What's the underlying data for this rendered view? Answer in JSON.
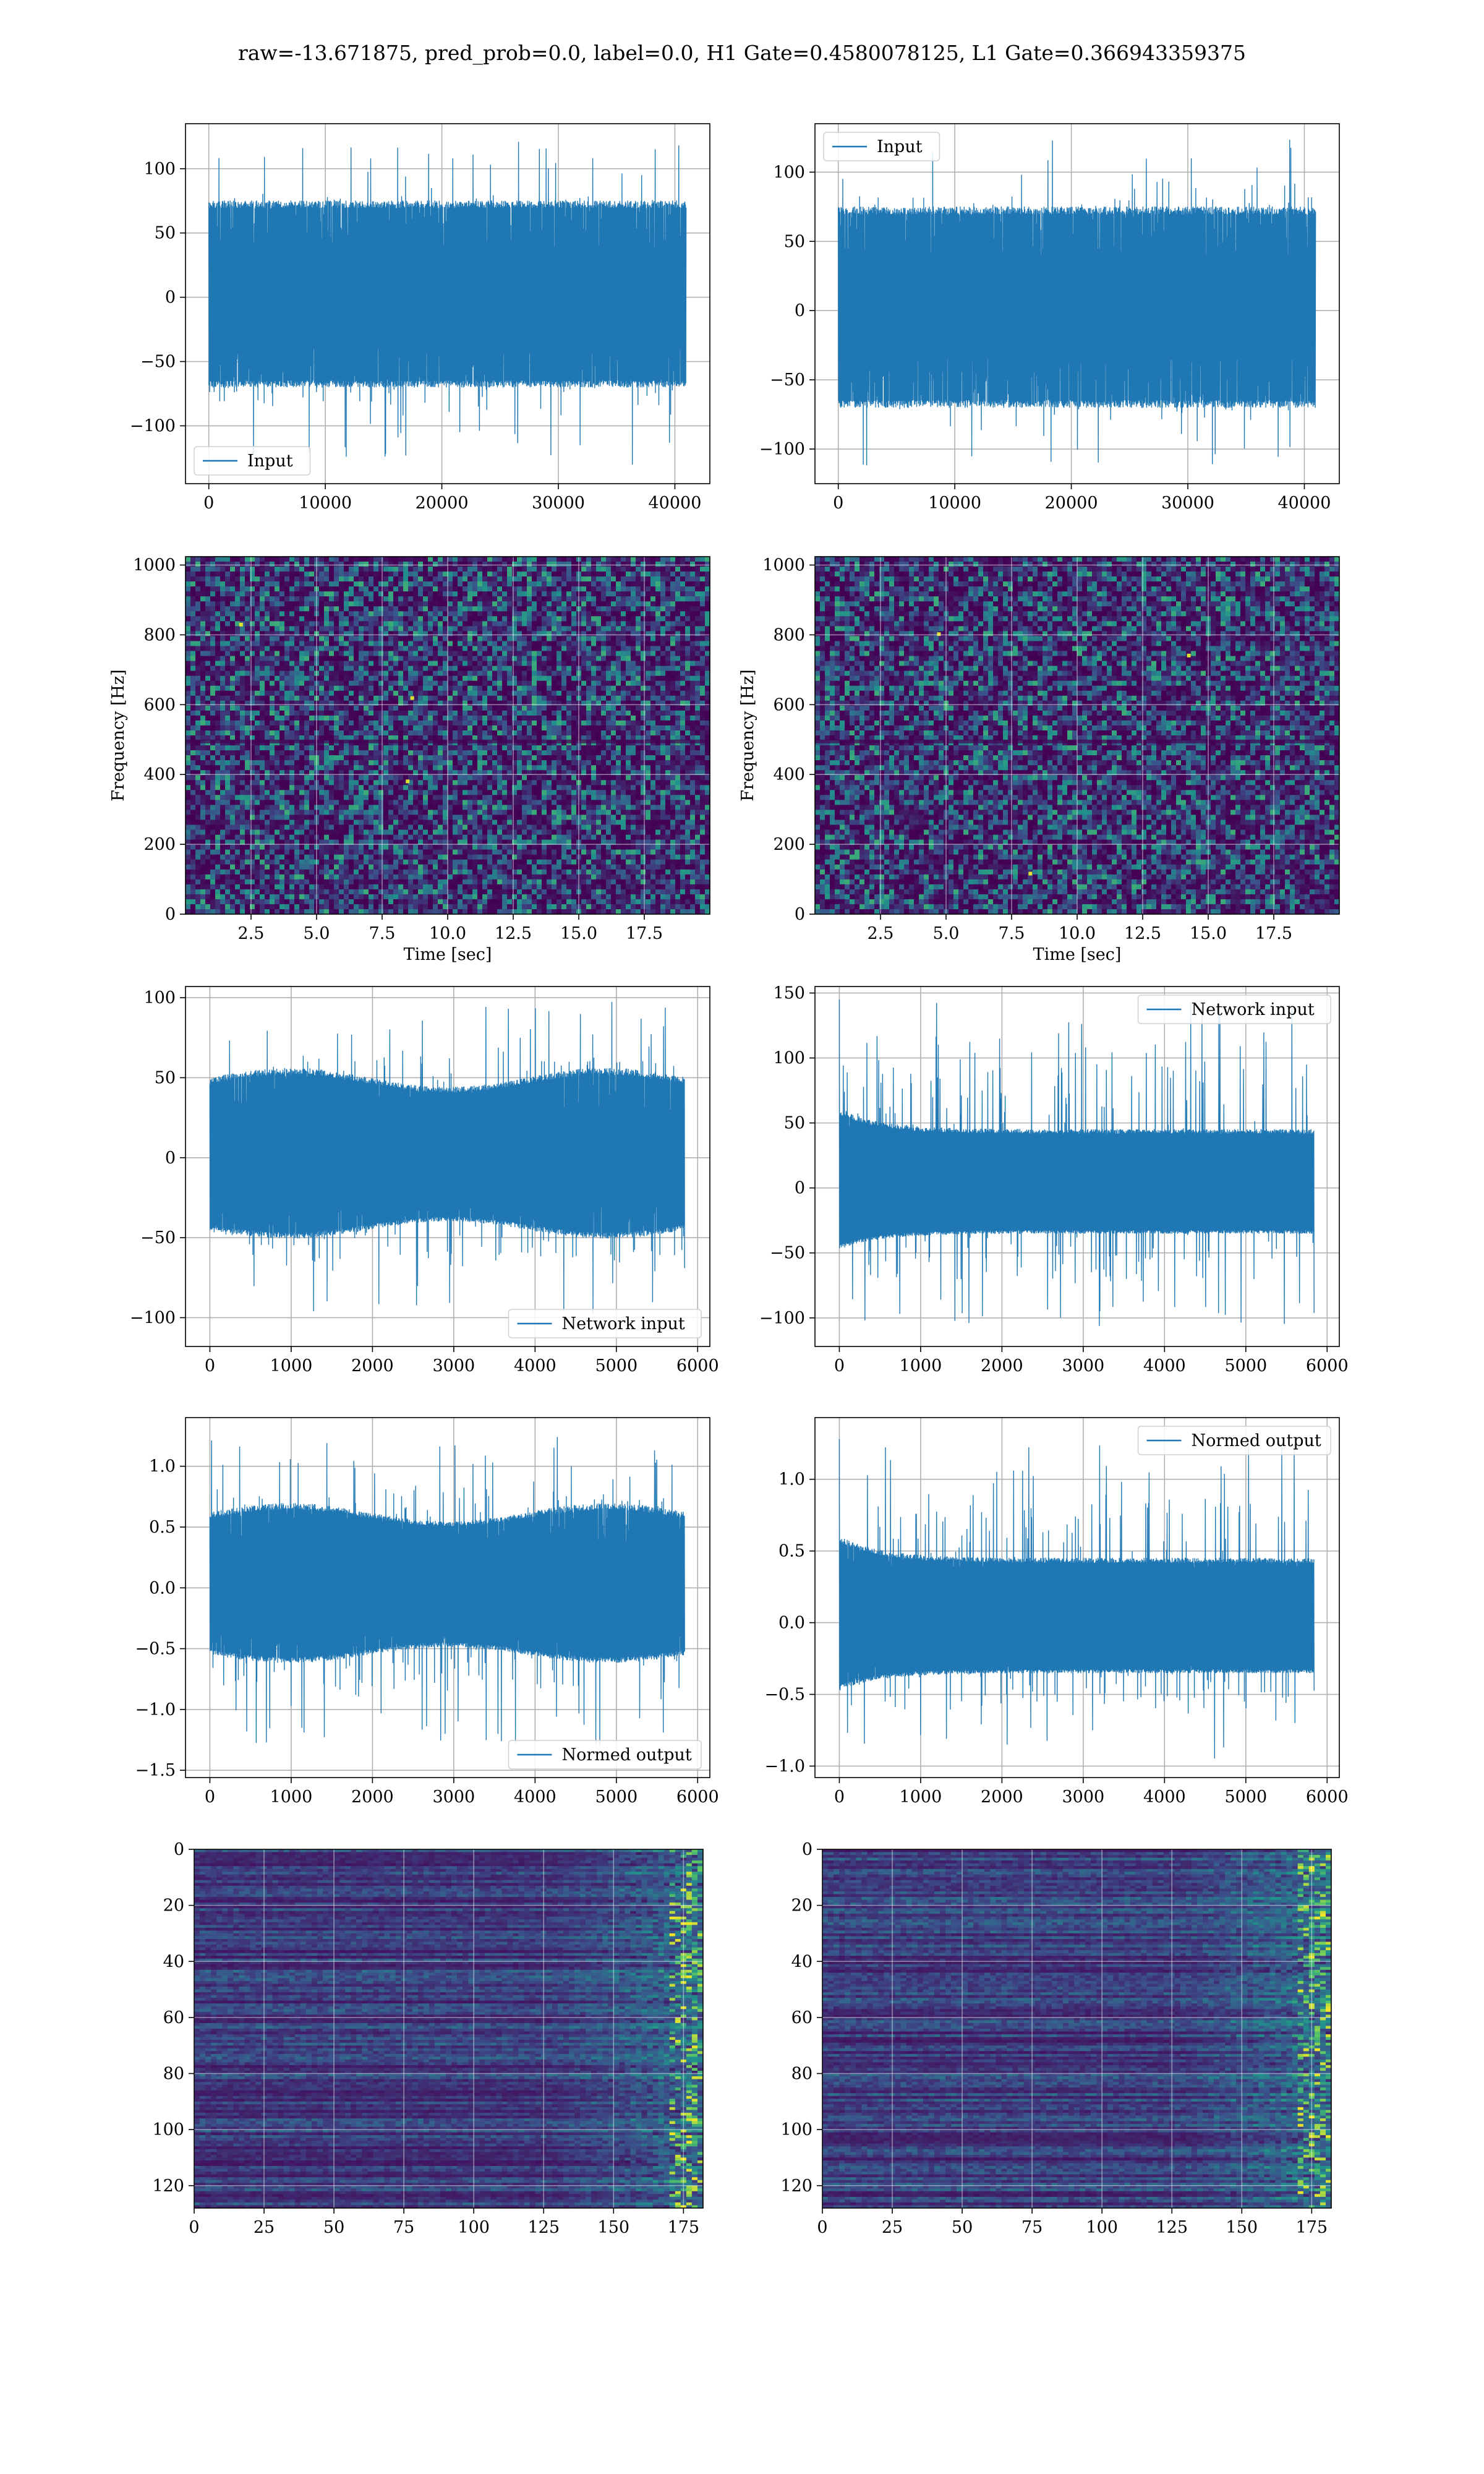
{
  "figure": {
    "suptitle": "raw=-13.671875, pred_prob=0.0, label=0.0, H1 Gate=0.4580078125, L1 Gate=0.366943359375"
  },
  "colors": {
    "line": "#1f77b4",
    "grid": "#b0b0b0",
    "viridis_dark": "#440154",
    "viridis_mid": "#3b528b",
    "viridis_teal": "#21918c",
    "viridis_green": "#5ec962",
    "viridis_yellow": "#fde725"
  },
  "chart_data": [
    {
      "id": "h1-input",
      "type": "line",
      "legend": [
        "Input"
      ],
      "legend_loc": "lower-left",
      "xlim": [
        -2000,
        43000
      ],
      "ylim": [
        -145,
        135
      ],
      "xticks": [
        0,
        10000,
        20000,
        30000,
        40000
      ],
      "yticks": [
        -100,
        -50,
        0,
        50,
        100
      ],
      "series": [
        {
          "name": "Input",
          "n_samples": 40960,
          "x_range": [
            0,
            40960
          ],
          "envelope_typical": [
            -70,
            75
          ],
          "peak_max": 125,
          "peak_min": -130
        }
      ],
      "grid": true
    },
    {
      "id": "l1-input",
      "type": "line",
      "legend": [
        "Input"
      ],
      "legend_loc": "upper-left",
      "xlim": [
        -2000,
        43000
      ],
      "ylim": [
        -125,
        135
      ],
      "xticks": [
        0,
        10000,
        20000,
        30000,
        40000
      ],
      "yticks": [
        -100,
        -50,
        0,
        50,
        100
      ],
      "series": [
        {
          "name": "Input",
          "n_samples": 40960,
          "x_range": [
            0,
            40960
          ],
          "envelope_typical": [
            -70,
            75
          ],
          "peak_max": 130,
          "peak_min": -112
        }
      ],
      "grid": true
    },
    {
      "id": "h1-spectrogram",
      "type": "heatmap",
      "xlabel": "Time [sec]",
      "ylabel": "Frequency [Hz]",
      "xlim": [
        0,
        20
      ],
      "ylim": [
        0,
        1024
      ],
      "xticks": [
        2.5,
        5.0,
        7.5,
        10.0,
        12.5,
        15.0,
        17.5
      ],
      "yticks": [
        0,
        200,
        400,
        600,
        800,
        1000
      ],
      "colormap": "viridis",
      "grid": true
    },
    {
      "id": "l1-spectrogram",
      "type": "heatmap",
      "xlabel": "Time [sec]",
      "ylabel": "Frequency [Hz]",
      "xlim": [
        0,
        20
      ],
      "ylim": [
        0,
        1024
      ],
      "xticks": [
        2.5,
        5.0,
        7.5,
        10.0,
        12.5,
        15.0,
        17.5
      ],
      "yticks": [
        0,
        200,
        400,
        600,
        800,
        1000
      ],
      "colormap": "viridis",
      "grid": true
    },
    {
      "id": "h1-network-input",
      "type": "line",
      "legend": [
        "Network input"
      ],
      "legend_loc": "lower-right",
      "xlim": [
        -300,
        6150
      ],
      "ylim": [
        -118,
        107
      ],
      "xticks": [
        0,
        1000,
        2000,
        3000,
        4000,
        5000,
        6000
      ],
      "yticks": [
        -100,
        -50,
        0,
        50,
        100
      ],
      "series": [
        {
          "name": "Network input",
          "n_samples": 5840,
          "x_range": [
            0,
            5840
          ],
          "envelope_typical": [
            -45,
            50
          ],
          "peak_max": 98,
          "peak_min": -100
        }
      ],
      "grid": true
    },
    {
      "id": "l1-network-input",
      "type": "line",
      "legend": [
        "Network input"
      ],
      "legend_loc": "upper-right",
      "xlim": [
        -300,
        6150
      ],
      "ylim": [
        -122,
        155
      ],
      "xticks": [
        0,
        1000,
        2000,
        3000,
        4000,
        5000,
        6000
      ],
      "yticks": [
        -100,
        -50,
        0,
        50,
        100,
        150
      ],
      "series": [
        {
          "name": "Network input",
          "n_samples": 5840,
          "x_range": [
            0,
            5840
          ],
          "envelope_typical": [
            -35,
            45
          ],
          "peak_max": 145,
          "peak_min": -108
        }
      ],
      "grid": true
    },
    {
      "id": "h1-normed-output",
      "type": "line",
      "legend": [
        "Normed output"
      ],
      "legend_loc": "lower-right",
      "xlim": [
        -300,
        6150
      ],
      "ylim": [
        -1.56,
        1.4
      ],
      "xticks": [
        0,
        1000,
        2000,
        3000,
        4000,
        5000,
        6000
      ],
      "yticks": [
        -1.5,
        -1.0,
        -0.5,
        0.0,
        0.5,
        1.0
      ],
      "series": [
        {
          "name": "Normed output",
          "n_samples": 5840,
          "x_range": [
            0,
            5840
          ],
          "envelope_typical": [
            -0.55,
            0.62
          ],
          "peak_max": 1.25,
          "peak_min": -1.3
        }
      ],
      "grid": true
    },
    {
      "id": "l1-normed-output",
      "type": "line",
      "legend": [
        "Normed output"
      ],
      "legend_loc": "upper-right",
      "xlim": [
        -300,
        6150
      ],
      "ylim": [
        -1.08,
        1.43
      ],
      "xticks": [
        0,
        1000,
        2000,
        3000,
        4000,
        5000,
        6000
      ],
      "yticks": [
        -1.0,
        -0.5,
        0.0,
        0.5,
        1.0
      ],
      "series": [
        {
          "name": "Normed output",
          "n_samples": 5840,
          "x_range": [
            0,
            5840
          ],
          "envelope_typical": [
            -0.35,
            0.45
          ],
          "peak_max": 1.28,
          "peak_min": -0.95
        }
      ],
      "grid": true
    },
    {
      "id": "h1-feature-map",
      "type": "heatmap",
      "xlim": [
        0,
        182
      ],
      "ylim": [
        128,
        0
      ],
      "xticks": [
        0,
        25,
        50,
        75,
        100,
        125,
        150,
        175
      ],
      "yticks": [
        0,
        20,
        40,
        60,
        80,
        100,
        120
      ],
      "rows": 128,
      "cols": 182,
      "colormap": "viridis",
      "grid": true
    },
    {
      "id": "l1-feature-map",
      "type": "heatmap",
      "xlim": [
        0,
        182
      ],
      "ylim": [
        128,
        0
      ],
      "xticks": [
        0,
        25,
        50,
        75,
        100,
        125,
        150,
        175
      ],
      "yticks": [
        0,
        20,
        40,
        60,
        80,
        100,
        120
      ],
      "rows": 128,
      "cols": 182,
      "colormap": "viridis",
      "grid": true
    }
  ]
}
